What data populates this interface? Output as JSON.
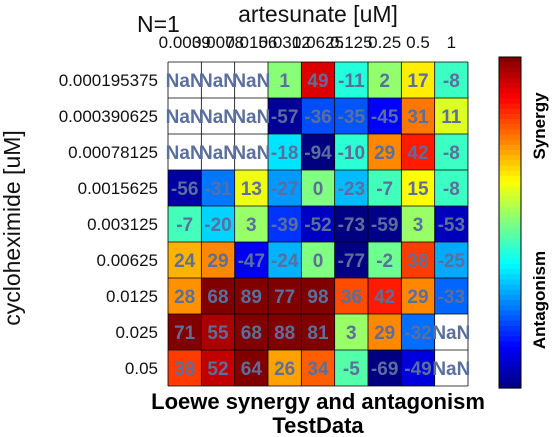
{
  "chart_data": {
    "type": "heatmap",
    "title": "Loewe synergy and antagonism",
    "subtitle": "TestData",
    "annotation": "N=1",
    "xlabel": "artesunate [uM]",
    "ylabel": "cycloheximide [uM]",
    "x_ticks": [
      "0.0039",
      "0.0078",
      "0.0156",
      "0.0312",
      "0.0625",
      "0.125",
      "0.25",
      "0.5",
      "1"
    ],
    "y_ticks": [
      "0.000195375",
      "0.000390625",
      "0.00078125",
      "0.0015625",
      "0.003125",
      "0.00625",
      "0.0125",
      "0.025",
      "0.05"
    ],
    "values": [
      [
        null,
        null,
        null,
        1,
        49,
        -11,
        2,
        17,
        -8
      ],
      [
        null,
        null,
        null,
        -57,
        -36,
        -35,
        -45,
        31,
        11
      ],
      [
        null,
        null,
        null,
        -18,
        -94,
        -10,
        29,
        42,
        -8
      ],
      [
        -56,
        -31,
        13,
        -27,
        0,
        -23,
        -7,
        15,
        -8
      ],
      [
        -7,
        -20,
        3,
        -39,
        -52,
        -73,
        -59,
        3,
        -53
      ],
      [
        24,
        29,
        -47,
        -24,
        0,
        -77,
        -2,
        38,
        -25
      ],
      [
        28,
        68,
        89,
        77,
        98,
        36,
        42,
        29,
        -33
      ],
      [
        71,
        55,
        68,
        88,
        81,
        3,
        29,
        -32,
        null
      ],
      [
        38,
        52,
        64,
        26,
        34,
        -5,
        -69,
        -49,
        null
      ]
    ],
    "cell_labels": [
      [
        "NaN",
        "NaN",
        "NaN",
        "1",
        "49",
        "-11",
        "2",
        "17",
        "-8"
      ],
      [
        "NaN",
        "NaN",
        "NaN",
        "-57",
        "-36",
        "-35",
        "-45",
        "31",
        "11"
      ],
      [
        "NaN",
        "NaN",
        "NaN",
        "-18",
        "-94",
        "-10",
        "29",
        "42",
        "-8"
      ],
      [
        "-56",
        "-31",
        "13",
        "-27",
        "0",
        "-23",
        "-7",
        "15",
        "-8"
      ],
      [
        "-7",
        "-20",
        "3",
        "-39",
        "-52",
        "-73",
        "-59",
        "3",
        "-53"
      ],
      [
        "24",
        "29",
        "-47",
        "-24",
        "0",
        "-77",
        "-2",
        "38",
        "-25"
      ],
      [
        "28",
        "68",
        "89",
        "77",
        "98",
        "36",
        "42",
        "29",
        "-33"
      ],
      [
        "71",
        "55",
        "68",
        "88",
        "81",
        "3",
        "29",
        "-32",
        "NaN"
      ],
      [
        "38",
        "52",
        "64",
        "26",
        "34",
        "-5",
        "-69",
        "-49",
        "NaN"
      ]
    ],
    "color_range": [
      -60,
      60
    ],
    "colormap": "jet",
    "colorbar_labels": {
      "top": "Synergy",
      "bottom": "Antagonism"
    },
    "grid": true,
    "legend": "right"
  }
}
